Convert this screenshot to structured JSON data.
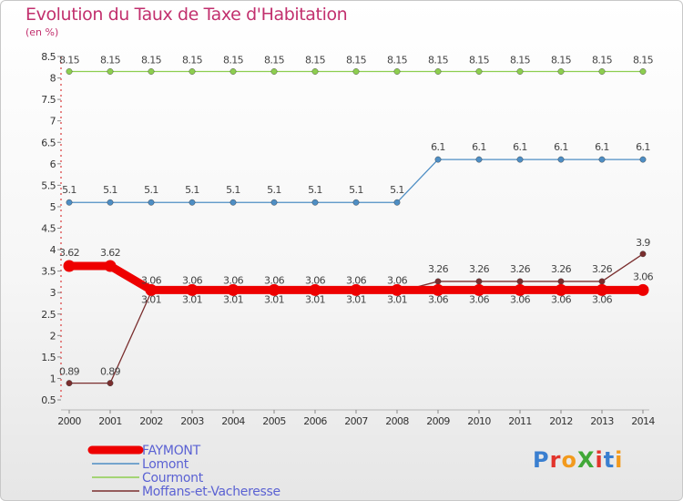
{
  "title": "Evolution du Taux de Taxe d'Habitation",
  "subtitle": "(en %)",
  "logo": {
    "text": "ProXiti",
    "colors": [
      "#3a7fd0",
      "#e2342c",
      "#f29a1d",
      "#41a838",
      "#e2342c",
      "#3a7fd0",
      "#f29a1d"
    ]
  },
  "chart_data": {
    "type": "line",
    "title": "Evolution du Taux de Taxe d'Habitation",
    "ylabel": "(en %)",
    "xlabel": "",
    "ylim": [
      0.5,
      8.5
    ],
    "grid": false,
    "legend_position": "bottom-left",
    "x": [
      "2000",
      "2001",
      "2002",
      "2003",
      "2004",
      "2005",
      "2006",
      "2007",
      "2008",
      "2009",
      "2010",
      "2011",
      "2012",
      "2013",
      "2014"
    ],
    "y_ticks": [
      "0.5",
      "1",
      "1.5",
      "2",
      "2.5",
      "3",
      "3.5",
      "4",
      "4.5",
      "5",
      "5.5",
      "6",
      "6.5",
      "7",
      "7.5",
      "8",
      "8.5"
    ],
    "series": [
      {
        "name": "Moffans-et-Vacheresse",
        "color": "#7a2e2e",
        "values": [
          0.89,
          0.89,
          3.01,
          3.01,
          3.01,
          3.01,
          3.01,
          3.01,
          3.01,
          3.26,
          3.26,
          3.26,
          3.26,
          3.26,
          3.9
        ],
        "labels": [
          "0.89",
          "0.89",
          "3.01",
          "3.01",
          "3.01",
          "3.01",
          "3.01",
          "3.01",
          "3.01",
          "3.26",
          "3.26",
          "3.26",
          "3.26",
          "3.26",
          "3.9"
        ]
      },
      {
        "name": "Courmont",
        "color": "#8dce4f",
        "values": [
          8.15,
          8.15,
          8.15,
          8.15,
          8.15,
          8.15,
          8.15,
          8.15,
          8.15,
          8.15,
          8.15,
          8.15,
          8.15,
          8.15,
          8.15
        ],
        "labels": [
          "8.15",
          "8.15",
          "8.15",
          "8.15",
          "8.15",
          "8.15",
          "8.15",
          "8.15",
          "8.15",
          "8.15",
          "8.15",
          "8.15",
          "8.15",
          "8.15",
          "8.15"
        ]
      },
      {
        "name": "Lomont",
        "color": "#4e8ec4",
        "values": [
          5.1,
          5.1,
          5.1,
          5.1,
          5.1,
          5.1,
          5.1,
          5.1,
          5.1,
          6.1,
          6.1,
          6.1,
          6.1,
          6.1,
          6.1
        ],
        "labels": [
          "5.1",
          "5.1",
          "5.1",
          "5.1",
          "5.1",
          "5.1",
          "5.1",
          "5.1",
          "5.1",
          "6.1",
          "6.1",
          "6.1",
          "6.1",
          "6.1",
          "6.1"
        ]
      },
      {
        "name": "FAYMONT",
        "color": "#ee0000",
        "values": [
          3.62,
          3.62,
          3.06,
          3.06,
          3.06,
          3.06,
          3.06,
          3.06,
          3.06,
          3.06,
          3.06,
          3.06,
          3.06,
          3.06,
          3.06
        ],
        "labels": [
          "3.62",
          "3.62",
          "3.06",
          "3.06",
          "3.06",
          "3.06",
          "3.06",
          "3.06",
          "3.06",
          "3.06",
          "3.06",
          "3.06",
          "3.06",
          "3.06",
          "3.06"
        ]
      }
    ],
    "legend": [
      {
        "name": "FAYMONT",
        "color": "#ee0000",
        "text_color": "#5b62d3"
      },
      {
        "name": "Lomont",
        "color": "#4e8ec4",
        "text_color": "#5b62d3"
      },
      {
        "name": "Courmont",
        "color": "#8dce4f",
        "text_color": "#5b62d3"
      },
      {
        "name": "Moffans-et-Vacheresse",
        "color": "#7a2e2e",
        "text_color": "#5b62d3"
      }
    ]
  }
}
